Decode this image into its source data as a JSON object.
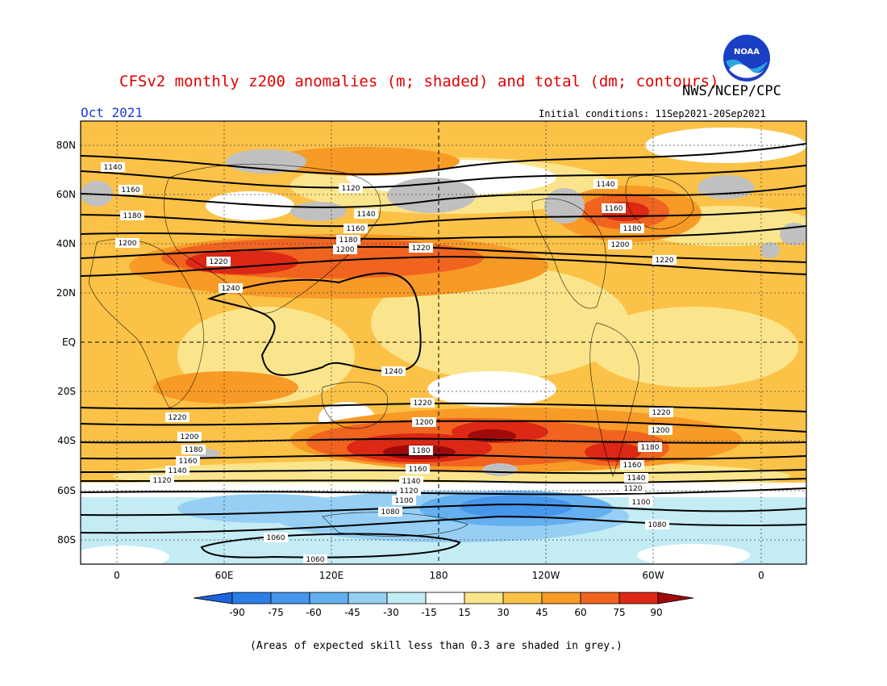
{
  "header": {
    "title": "CFSv2 monthly z200 anomalies (m; shaded) and total (dm; contours)",
    "agency": "NWS/NCEP/CPC",
    "month": "Oct 2021",
    "init_conditions": "Initial conditions: 11Sep2021-20Sep2021"
  },
  "logo": {
    "icon": "noaa-logo",
    "text": "NOAA"
  },
  "axes": {
    "lat_labels": [
      "80N",
      "60N",
      "40N",
      "20N",
      "EQ",
      "20S",
      "40S",
      "60S",
      "80S"
    ],
    "lon_labels": [
      "0",
      "60E",
      "120E",
      "180",
      "120W",
      "60W",
      "0"
    ]
  },
  "colorbar": {
    "ticks": [
      "-90",
      "-75",
      "-60",
      "-45",
      "-30",
      "-15",
      "15",
      "30",
      "45",
      "60",
      "75",
      "90"
    ],
    "colors": [
      "#1e64dc",
      "#2d7ee6",
      "#4696ec",
      "#64afef",
      "#96cff3",
      "#c4ecf5",
      "#ffffff",
      "#fbe58c",
      "#fbc247",
      "#f79a26",
      "#f06420",
      "#dc2814",
      "#a00a0a"
    ]
  },
  "contour_labels": [
    "1140",
    "1160",
    "1180",
    "1200",
    "1220",
    "1240",
    "1120",
    "1100",
    "1080",
    "1060"
  ],
  "footnote": "(Areas of expected skill less than 0.3 are shaded in grey.)",
  "colors": {
    "title": "#e10000",
    "month": "#1c3ad6",
    "skill_grey": "#c0c0c0"
  }
}
